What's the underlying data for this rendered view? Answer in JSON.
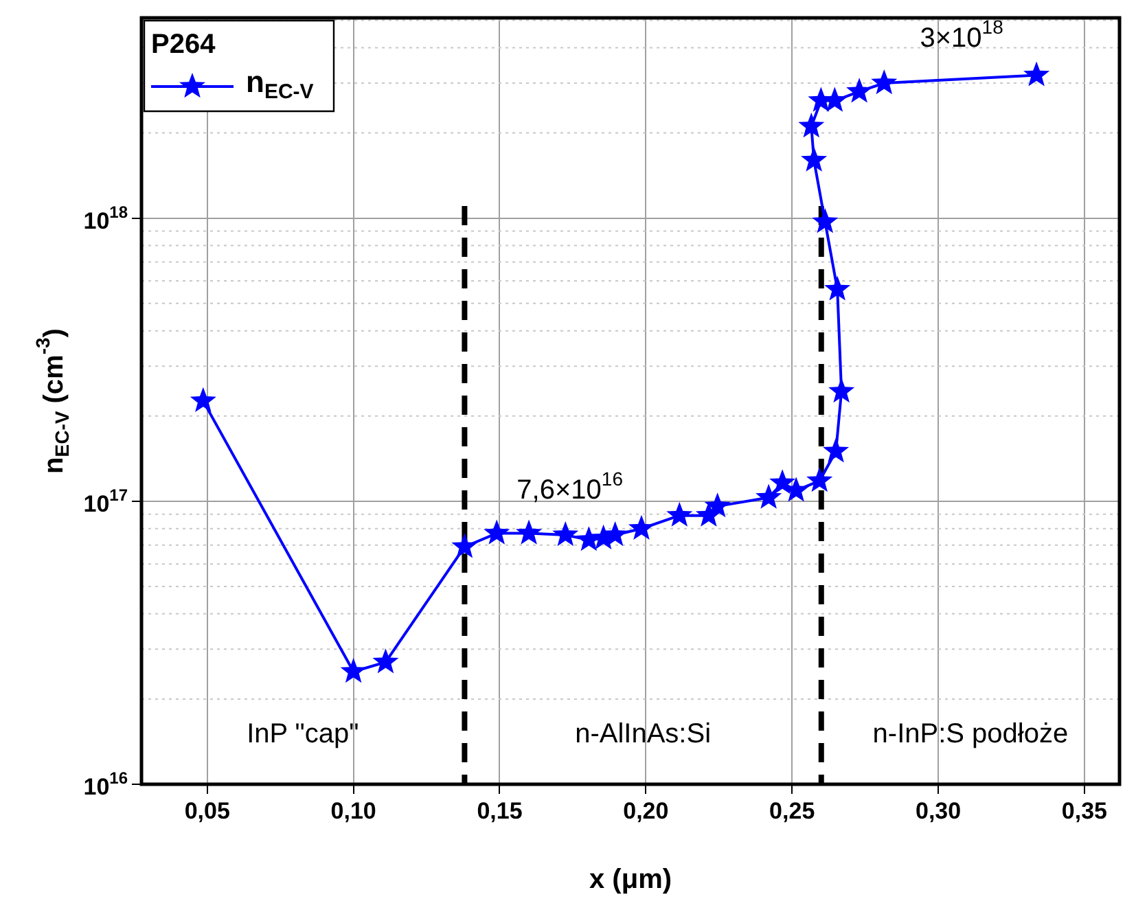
{
  "chart_data": {
    "type": "line",
    "xlabel": "x (μm)",
    "ylabel": "n$_{EC-V}$ (cm$^{-3}$)",
    "legend_title": "P264",
    "legend": "top left",
    "grid": true,
    "log": "y",
    "marker": "star",
    "line_style": "solid",
    "xlim": [
      0.0275,
      0.362
    ],
    "ylim": [
      1e+16,
      5.1e+18
    ],
    "xticks": [
      {
        "value": 0.05,
        "label": "0,05"
      },
      {
        "value": 0.1,
        "label": "0,10"
      },
      {
        "value": 0.15,
        "label": "0,15"
      },
      {
        "value": 0.2,
        "label": "0,20"
      },
      {
        "value": 0.25,
        "label": "0,25"
      },
      {
        "value": 0.3,
        "label": "0,30"
      },
      {
        "value": 0.35,
        "label": "0,35"
      }
    ],
    "yticks": [
      {
        "value": 1e+16,
        "label": "10$^{16}$"
      },
      {
        "value": 1e+17,
        "label": "10$^{17}$"
      },
      {
        "value": 1e+18,
        "label": "10$^{18}$"
      }
    ],
    "series": [
      {
        "name": "n$_{EC-V}$",
        "color": "#0000ff",
        "x": [
          0.0486,
          0.1,
          0.111,
          0.138,
          0.149,
          0.16,
          0.1725,
          0.1805,
          0.1855,
          0.1895,
          0.1985,
          0.2115,
          0.2215,
          0.2245,
          0.242,
          0.2467,
          0.2514,
          0.2594,
          0.265,
          0.2669,
          0.2655,
          0.2613,
          0.2575,
          0.2566,
          0.2599,
          0.2646,
          0.273,
          0.2815,
          0.3336
        ],
        "values": [
          2.26e+17,
          2.5e+16,
          2.7e+16,
          6.9e+16,
          7.7e+16,
          7.7e+16,
          7.6e+16,
          7.3e+16,
          7.4e+16,
          7.6e+16,
          8e+16,
          8.9e+16,
          8.9e+16,
          9.6e+16,
          1.03e+17,
          1.16e+17,
          1.09e+17,
          1.18e+17,
          1.5e+17,
          2.44e+17,
          5.6e+17,
          9.7e+17,
          1.6e+18,
          2.11e+18,
          2.6e+18,
          2.6e+18,
          2.8e+18,
          3e+18,
          3.2e+18
        ]
      }
    ],
    "ref_lines": [
      {
        "axis": "x",
        "value": 0.138,
        "color": "#000000",
        "line_style": "dashed"
      },
      {
        "axis": "x",
        "value": 0.26,
        "color": "#000000",
        "line_style": "dashed"
      }
    ],
    "annotations": [
      "InP \"cap\"",
      "n-AlInAs:Si",
      "n-InP:S podłoże",
      {
        "text": "7,6×10$^{16}$",
        "x": 0.174,
        "y": 7.6e+16
      },
      {
        "text": "3×10$^{18}$",
        "x": 0.308,
        "y": 3e+18
      }
    ]
  }
}
